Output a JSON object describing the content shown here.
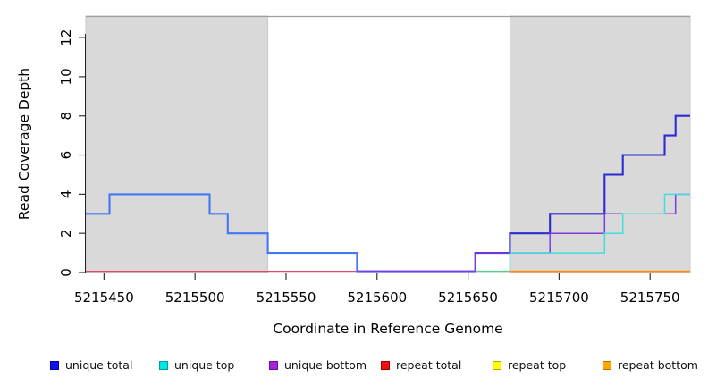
{
  "chart_data": {
    "type": "line",
    "subtype": "step",
    "title": "",
    "xlabel": "Coordinate in Reference Genome",
    "ylabel": "Read Coverage Depth",
    "xlim": [
      5215440,
      5215772
    ],
    "ylim": [
      0,
      13.1
    ],
    "x_ticks": [
      "5215450",
      "5215500",
      "5215550",
      "5215600",
      "5215650",
      "5215700",
      "5215750"
    ],
    "x_tick_values": [
      5215450,
      5215500,
      5215550,
      5215600,
      5215650,
      5215700,
      5215750
    ],
    "y_ticks": [
      "0",
      "2",
      "4",
      "6",
      "8",
      "10",
      "12"
    ],
    "y_tick_values": [
      0,
      2,
      4,
      6,
      8,
      10,
      12
    ],
    "grid": false,
    "background": "#ffffff",
    "shaded_regions": [
      {
        "from": 5215440,
        "to": 5215540,
        "fill": "#d9d9d9",
        "stroke": "#c9c9c9"
      },
      {
        "from": 5215673,
        "to": 5215772,
        "fill": "#d9d9d9",
        "stroke": "#c9c9c9"
      }
    ],
    "top_border_color": "#9e9e9e",
    "axis_color": "#333333",
    "legend": {
      "position": "bottom",
      "items": [
        {
          "label": "unique total",
          "swatch": "#1111ee",
          "border": "#0000aa"
        },
        {
          "label": "unique top",
          "swatch": "#00e5e5",
          "border": "#009f9f"
        },
        {
          "label": "unique bottom",
          "swatch": "#a323d6",
          "border": "#6a0dad"
        },
        {
          "label": "repeat total",
          "swatch": "#ee1111",
          "border": "#a00000"
        },
        {
          "label": "repeat top",
          "swatch": "#ffff00",
          "border": "#aaaa00"
        },
        {
          "label": "repeat bottom",
          "swatch": "#ffa500",
          "border": "#c07000"
        }
      ]
    },
    "series": [
      {
        "name": "unique total",
        "steps": [
          [
            5215440,
            3
          ],
          [
            5215453,
            4
          ],
          [
            5215508,
            3
          ],
          [
            5215518,
            2
          ],
          [
            5215540,
            1
          ],
          [
            5215589,
            0
          ],
          [
            5215654,
            1
          ],
          [
            5215673,
            2
          ],
          [
            5215695,
            3
          ],
          [
            5215725,
            5
          ],
          [
            5215735,
            6
          ],
          [
            5215758,
            7
          ],
          [
            5215764,
            8
          ]
        ]
      },
      {
        "name": "unique top",
        "steps": [
          [
            5215440,
            0
          ],
          [
            5215673,
            1
          ],
          [
            5215725,
            2
          ],
          [
            5215735,
            3
          ],
          [
            5215758,
            4
          ]
        ]
      },
      {
        "name": "unique bottom",
        "steps": [
          [
            5215440,
            0
          ],
          [
            5215654,
            1
          ],
          [
            5215695,
            2
          ],
          [
            5215725,
            3
          ],
          [
            5215764,
            4
          ]
        ]
      },
      {
        "name": "repeat total",
        "steps": [
          [
            5215440,
            0
          ]
        ]
      },
      {
        "name": "repeat top",
        "steps": [
          [
            5215440,
            0
          ]
        ]
      },
      {
        "name": "repeat bottom",
        "steps": [
          [
            5215440,
            0
          ]
        ]
      }
    ],
    "render_segments": [
      {
        "id": "repeat-total-line",
        "z": 1,
        "color": "#e04868",
        "width": 1.3,
        "points": [
          [
            5215440,
            0
          ],
          [
            5215589,
            0
          ]
        ]
      },
      {
        "id": "unique-total-left",
        "z": 2,
        "color": "#4477f5",
        "width": 2.1,
        "points": [
          [
            5215440,
            3
          ],
          [
            5215453,
            3
          ],
          [
            5215453,
            4
          ],
          [
            5215508,
            4
          ],
          [
            5215508,
            3
          ],
          [
            5215518,
            3
          ],
          [
            5215518,
            2
          ],
          [
            5215540,
            2
          ],
          [
            5215540,
            1
          ],
          [
            5215589,
            1
          ],
          [
            5215589,
            0
          ],
          [
            5215654,
            0
          ]
        ]
      },
      {
        "id": "unique-total-right",
        "z": 3,
        "color": "#2b2bd1",
        "width": 2.1,
        "points": [
          [
            5215654,
            0
          ],
          [
            5215654,
            1
          ],
          [
            5215673,
            1
          ],
          [
            5215673,
            2
          ],
          [
            5215695,
            2
          ],
          [
            5215695,
            3
          ],
          [
            5215725,
            3
          ],
          [
            5215725,
            5
          ],
          [
            5215735,
            5
          ],
          [
            5215735,
            6
          ],
          [
            5215758,
            6
          ],
          [
            5215758,
            7
          ],
          [
            5215764,
            7
          ],
          [
            5215764,
            8
          ],
          [
            5215772,
            8
          ]
        ]
      },
      {
        "id": "unique-bottom-line",
        "z": 4,
        "color": "#7f3bdb",
        "width": 1.5,
        "points": [
          [
            5215589,
            0
          ],
          [
            5215654,
            0
          ],
          [
            5215654,
            1
          ],
          [
            5215695,
            1
          ],
          [
            5215695,
            2
          ],
          [
            5215725,
            2
          ],
          [
            5215725,
            3
          ],
          [
            5215764,
            3
          ],
          [
            5215764,
            4
          ],
          [
            5215772,
            4
          ]
        ]
      },
      {
        "id": "unique-top-line",
        "z": 5,
        "color": "#3fdede",
        "width": 1.5,
        "points": [
          [
            5215673,
            0
          ],
          [
            5215673,
            1
          ],
          [
            5215725,
            1
          ],
          [
            5215725,
            2
          ],
          [
            5215735,
            2
          ],
          [
            5215735,
            3
          ],
          [
            5215758,
            3
          ],
          [
            5215758,
            4
          ],
          [
            5215772,
            4
          ]
        ]
      },
      {
        "id": "repeat-top-cyan-overlap",
        "z": 6,
        "color": "#62c893",
        "width": 1.5,
        "points": [
          [
            5215654,
            0
          ],
          [
            5215673,
            0
          ]
        ]
      },
      {
        "id": "repeat-bottom-line",
        "z": 7,
        "color": "#ff8c1a",
        "width": 1.7,
        "points": [
          [
            5215673,
            0
          ],
          [
            5215772,
            0
          ]
        ]
      }
    ]
  }
}
